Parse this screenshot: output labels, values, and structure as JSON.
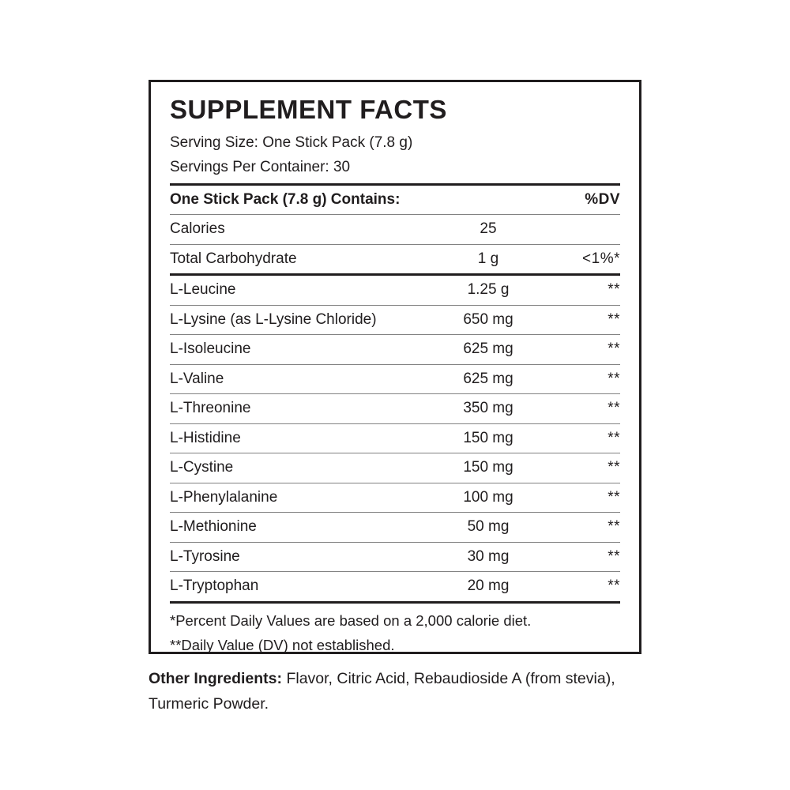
{
  "label": {
    "title": "SUPPLEMENT FACTS",
    "serving_size": "Serving Size: One Stick Pack (7.8 g)",
    "servings_per_container": "Servings Per Container: 30",
    "table": {
      "header": {
        "name": "One Stick Pack (7.8 g) Contains:",
        "amount": "",
        "dv": "%DV"
      },
      "rows": [
        {
          "name": "Calories",
          "amount": "25",
          "dv": "",
          "thick_below": false
        },
        {
          "name": "Total Carbohydrate",
          "amount": "1 g",
          "dv": "<1%*",
          "thick_below": true
        },
        {
          "name": "L-Leucine",
          "amount": "1.25 g",
          "dv": "**",
          "thick_below": false
        },
        {
          "name": "L-Lysine (as L-Lysine Chloride)",
          "amount": "650 mg",
          "dv": "**",
          "thick_below": false
        },
        {
          "name": "L-Isoleucine",
          "amount": "625 mg",
          "dv": "**",
          "thick_below": false
        },
        {
          "name": "L-Valine",
          "amount": "625 mg",
          "dv": "**",
          "thick_below": false
        },
        {
          "name": "L-Threonine",
          "amount": "350 mg",
          "dv": "**",
          "thick_below": false
        },
        {
          "name": "L-Histidine",
          "amount": "150 mg",
          "dv": "**",
          "thick_below": false
        },
        {
          "name": "L-Cystine",
          "amount": "150 mg",
          "dv": "**",
          "thick_below": false
        },
        {
          "name": "L-Phenylalanine",
          "amount": "100 mg",
          "dv": "**",
          "thick_below": false
        },
        {
          "name": "L-Methionine",
          "amount": "50 mg",
          "dv": "**",
          "thick_below": false
        },
        {
          "name": "L-Tyrosine",
          "amount": "30 mg",
          "dv": "**",
          "thick_below": false
        },
        {
          "name": "L-Tryptophan",
          "amount": "20 mg",
          "dv": "**",
          "thick_below": true
        }
      ]
    },
    "footnotes": [
      "*Percent Daily Values are based on a 2,000 calorie diet.",
      "**Daily Value (DV) not established."
    ]
  },
  "other_ingredients": {
    "label": "Other Ingredients:",
    "text": " Flavor, Citric Acid, Rebaudioside A (from stevia), Turmeric Powder."
  },
  "colors": {
    "text": "#201d1e",
    "thin_divider": "#828282",
    "thick_divider": "#201d1e",
    "background": "#ffffff"
  }
}
